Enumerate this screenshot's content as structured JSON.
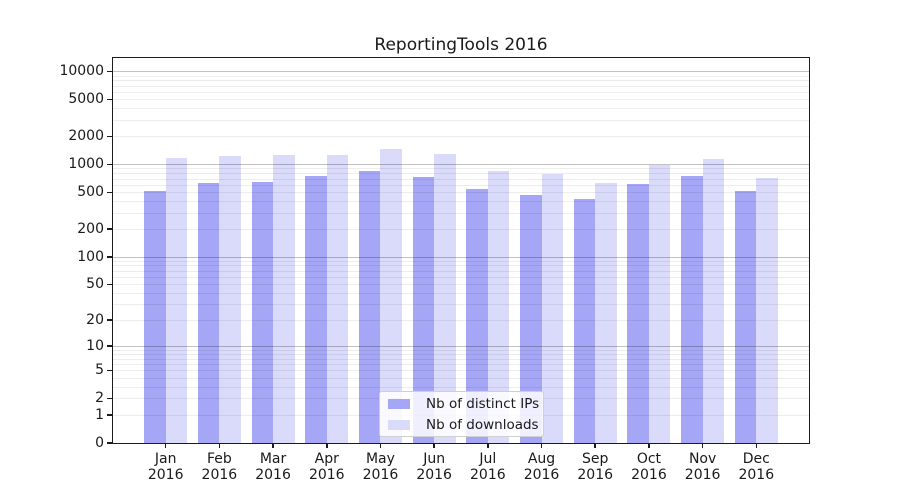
{
  "title": "ReportingTools 2016",
  "legend": {
    "items": [
      {
        "label": "Nb of distinct IPs",
        "color": "#a6a6f6"
      },
      {
        "label": "Nb of downloads",
        "color": "#dadafb"
      }
    ]
  },
  "chart_data": {
    "type": "bar",
    "title": "ReportingTools 2016",
    "categories": [
      "Jan",
      "Feb",
      "Mar",
      "Apr",
      "May",
      "Jun",
      "Jul",
      "Aug",
      "Sep",
      "Oct",
      "Nov",
      "Dec"
    ],
    "x_year": "2016",
    "series": [
      {
        "name": "Nb of distinct IPs",
        "color": "#a6a6f6",
        "values": [
          510,
          630,
          645,
          750,
          845,
          735,
          535,
          460,
          420,
          605,
          740,
          510
        ]
      },
      {
        "name": "Nb of downloads",
        "color": "#dadafb",
        "values": [
          1160,
          1225,
          1270,
          1250,
          1450,
          1290,
          850,
          780,
          630,
          980,
          1130,
          715
        ]
      }
    ],
    "yscale": "log1p",
    "y_ticks": [
      0,
      1,
      2,
      5,
      10,
      20,
      50,
      100,
      200,
      500,
      1000,
      2000,
      5000,
      10000
    ],
    "ylim": [
      0,
      13000
    ],
    "grid": "horizontal",
    "legend_position": "inside-bottom-center"
  }
}
